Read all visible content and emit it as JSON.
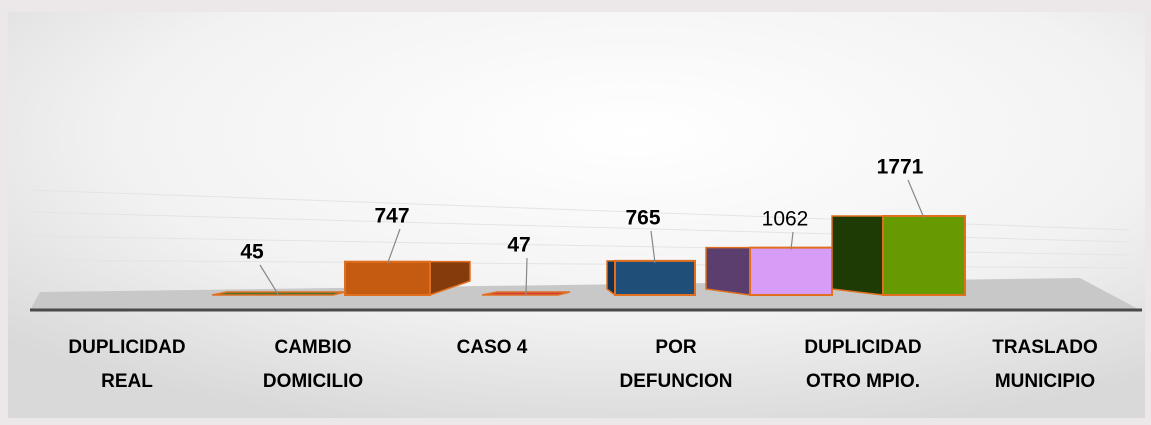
{
  "chart_data": {
    "type": "bar3d",
    "categories": [
      [
        "DUPLICIDAD",
        "REAL"
      ],
      [
        "CAMBIO",
        "DOMICILIO"
      ],
      [
        "CASO 4"
      ],
      [
        "POR",
        "DEFUNCION"
      ],
      [
        "DUPLICIDAD",
        "OTRO MPIO."
      ],
      [
        "TRASLADO",
        "MUNICIPIO"
      ]
    ],
    "values": [
      45,
      747,
      47,
      765,
      1062,
      1771
    ],
    "colors": [
      "#4f6f2c",
      "#c55a11",
      "#d23c3c",
      "#1f4e79",
      "#d79cf5",
      "#669a00"
    ]
  }
}
